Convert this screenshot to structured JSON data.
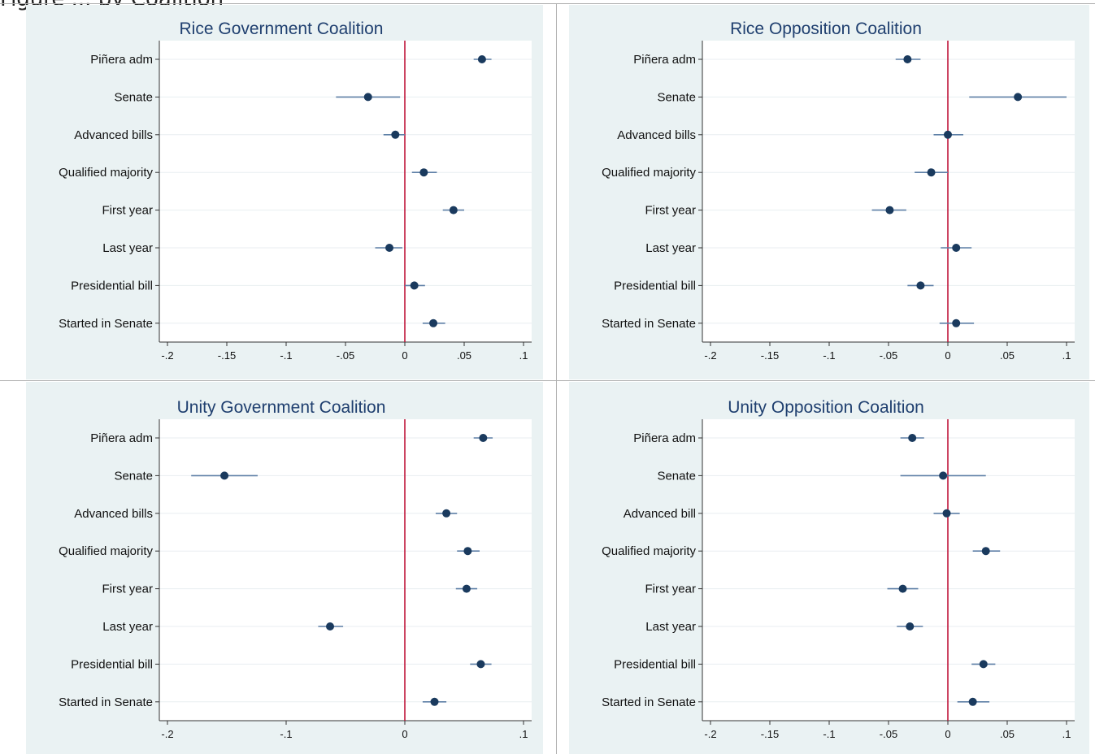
{
  "page": {
    "caption": "Figure ... by Coalition"
  },
  "chart_data": [
    {
      "type": "scatter",
      "title": "Rice Government Coalition",
      "categories": [
        "Piñera adm",
        "Senate",
        "Advanced bills",
        "Qualified majority",
        "First year",
        "Last year",
        "Presidential bill",
        "Started in Senate"
      ],
      "values": [
        0.065,
        -0.031,
        -0.008,
        0.016,
        0.041,
        -0.013,
        0.008,
        0.024
      ],
      "ci_low": [
        0.058,
        -0.058,
        -0.018,
        0.006,
        0.032,
        -0.025,
        0.0,
        0.015
      ],
      "ci_high": [
        0.073,
        -0.004,
        0.0,
        0.027,
        0.05,
        -0.002,
        0.017,
        0.034
      ],
      "xlim": [
        -0.2,
        0.1
      ],
      "xticks": [
        -0.2,
        -0.15,
        -0.1,
        -0.05,
        0,
        0.05,
        0.1
      ],
      "xtick_labels": [
        "-.2",
        "-.15",
        "-.1",
        "-.05",
        "0",
        ".05",
        ".1"
      ],
      "reference_line": 0,
      "grid": true
    },
    {
      "type": "scatter",
      "title": "Rice Opposition Coalition",
      "categories": [
        "Piñera adm",
        "Senate",
        "Advanced bills",
        "Qualified majority",
        "First year",
        "Last year",
        "Presidential bill",
        "Started in Senate"
      ],
      "values": [
        -0.034,
        0.059,
        0.0,
        -0.014,
        -0.049,
        0.007,
        -0.023,
        0.007
      ],
      "ci_low": [
        -0.044,
        0.018,
        -0.012,
        -0.028,
        -0.064,
        -0.006,
        -0.034,
        -0.007
      ],
      "ci_high": [
        -0.023,
        0.1,
        0.013,
        0.0,
        -0.035,
        0.02,
        -0.012,
        0.022
      ],
      "xlim": [
        -0.2,
        0.1
      ],
      "xticks": [
        -0.2,
        -0.15,
        -0.1,
        -0.05,
        0,
        0.05,
        0.1
      ],
      "xtick_labels": [
        "-.2",
        "-.15",
        "-.1",
        "-.05",
        "0",
        ".05",
        ".1"
      ],
      "reference_line": 0,
      "grid": true
    },
    {
      "type": "scatter",
      "title": "Unity Government Coalition",
      "categories": [
        "Piñera adm",
        "Senate",
        "Advanced bills",
        "Qualified majority",
        "First year",
        "Last year",
        "Presidential bill",
        "Started in Senate"
      ],
      "values": [
        0.066,
        -0.152,
        0.035,
        0.053,
        0.052,
        -0.063,
        0.064,
        0.025
      ],
      "ci_low": [
        0.058,
        -0.18,
        0.026,
        0.044,
        0.043,
        -0.073,
        0.055,
        0.015
      ],
      "ci_high": [
        0.074,
        -0.124,
        0.044,
        0.063,
        0.061,
        -0.052,
        0.073,
        0.035
      ],
      "xlim": [
        -0.2,
        0.1
      ],
      "xticks": [
        -0.2,
        -0.1,
        0,
        0.1
      ],
      "xtick_labels": [
        "-.2",
        "-.1",
        "0",
        ".1"
      ],
      "reference_line": 0,
      "grid": true
    },
    {
      "type": "scatter",
      "title": "Unity Opposition Coalition",
      "categories": [
        "Piñera adm",
        "Senate",
        "Advanced bill",
        "Qualified majority",
        "First year",
        "Last year",
        "Presidential bill",
        "Started in Senate"
      ],
      "values": [
        -0.03,
        -0.004,
        -0.001,
        0.032,
        -0.038,
        -0.032,
        0.03,
        0.021
      ],
      "ci_low": [
        -0.04,
        -0.04,
        -0.012,
        0.021,
        -0.051,
        -0.043,
        0.02,
        0.008
      ],
      "ci_high": [
        -0.02,
        0.032,
        0.01,
        0.044,
        -0.025,
        -0.021,
        0.04,
        0.035
      ],
      "xlim": [
        -0.2,
        0.1
      ],
      "xticks": [
        -0.2,
        -0.15,
        -0.1,
        -0.05,
        0,
        0.05,
        0.1
      ],
      "xtick_labels": [
        "-.2",
        "-.15",
        "-.1",
        "-.05",
        "0",
        ".05",
        ".1"
      ],
      "reference_line": 0,
      "grid": true
    }
  ]
}
